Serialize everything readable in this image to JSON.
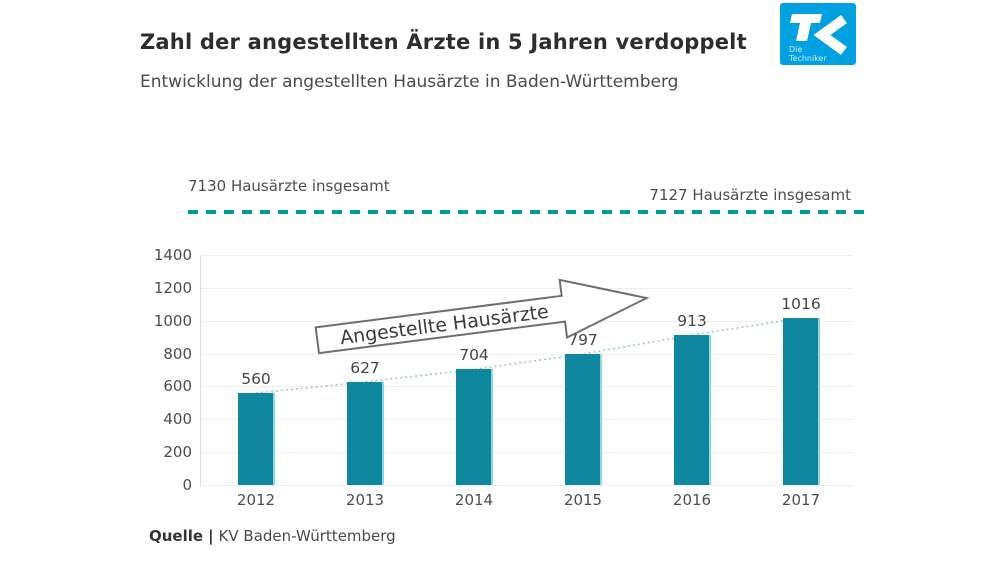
{
  "header": {
    "title": "Zahl der angestellten Ärzte in 5 Jahren verdoppelt",
    "subtitle": "Entwicklung der angestellten Hausärzte in Baden-Württemberg"
  },
  "logo": {
    "brand": "TK",
    "caption_line1": "Die",
    "caption_line2": "Techniker",
    "background_color": "#00a0e1"
  },
  "reference_line": {
    "left_label": "7130 Hausärzte insgesamt",
    "right_label": "7127 Hausärzte insgesamt",
    "color": "#0099a3",
    "style": "dashed"
  },
  "annotation_arrow": {
    "label": "Angestellte Hausärzte"
  },
  "source": {
    "prefix": "Quelle",
    "separator": "|",
    "text": "KV Baden-Württemberg"
  },
  "chart_data": {
    "type": "bar",
    "title": "Zahl der angestellten Ärzte in 5 Jahren verdoppelt",
    "subtitle": "Entwicklung der angestellten Hausärzte in Baden-Württemberg",
    "categories": [
      "2012",
      "2013",
      "2014",
      "2015",
      "2016",
      "2017"
    ],
    "values": [
      560,
      627,
      704,
      797,
      913,
      1016
    ],
    "xlabel": "",
    "ylabel": "",
    "ylim": [
      0,
      1400
    ],
    "ytick_step": 200,
    "yticks": [
      0,
      200,
      400,
      600,
      800,
      1000,
      1200,
      1400
    ],
    "grid": true,
    "legend": "none",
    "bar_color": "#0f879c",
    "bar_highlight_color": "#8ed8e2",
    "trend_line": {
      "present": true,
      "style": "dotted",
      "color": "#9cc7cd",
      "connects": "bar tops 2012-2017"
    },
    "annotations": [
      {
        "type": "arrow",
        "label": "Angestellte Hausärzte",
        "direction": "up-right"
      },
      {
        "type": "reference",
        "label": "7130 Hausärzte insgesamt",
        "position": "left"
      },
      {
        "type": "reference",
        "label": "7127 Hausärzte insgesamt",
        "position": "right"
      }
    ],
    "source": "Quelle | KV Baden-Württemberg"
  }
}
